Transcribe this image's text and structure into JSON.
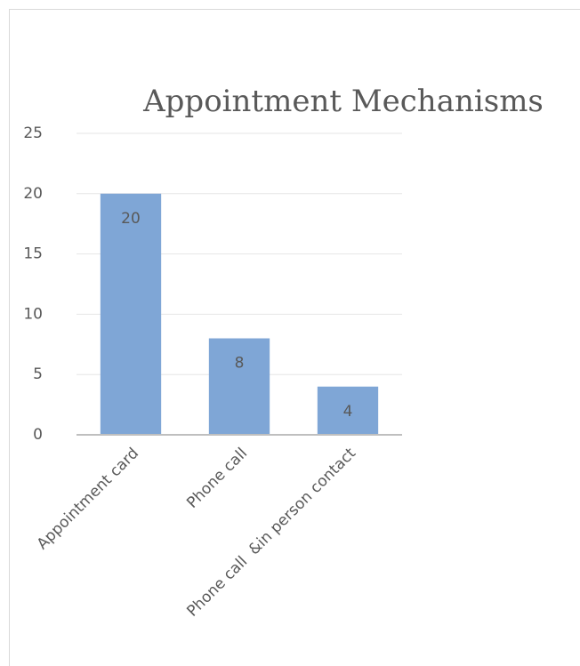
{
  "chart_data": {
    "type": "bar",
    "title": "Appointment Mechanisms",
    "categories": [
      "Appointment card",
      "Phone call",
      "Phone call  &in person contact"
    ],
    "values": [
      20,
      8,
      4
    ],
    "color": "#7fa6d6",
    "ylim": [
      0,
      25
    ],
    "yticks": [
      0,
      5,
      10,
      15,
      20,
      25
    ],
    "grid": true
  }
}
